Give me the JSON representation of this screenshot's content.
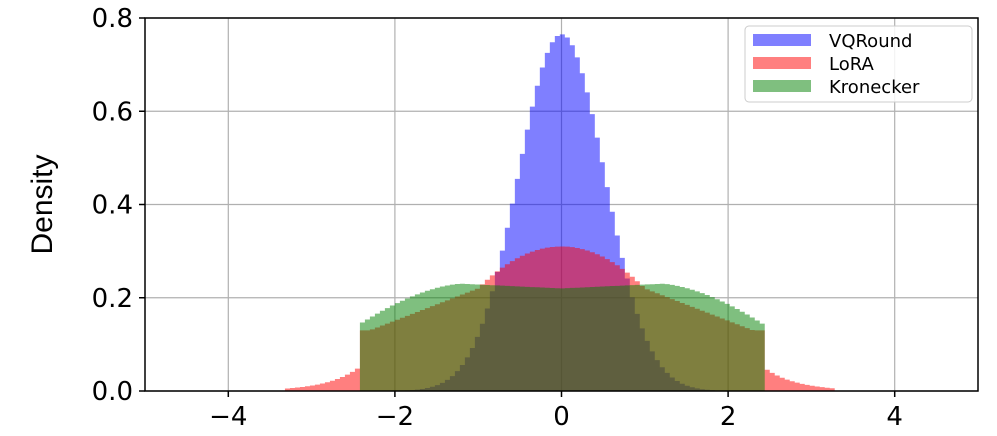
{
  "chart_data": {
    "type": "histogram",
    "xlabel": "",
    "ylabel": "Density",
    "xlim": [
      -5,
      5
    ],
    "ylim": [
      0,
      0.8
    ],
    "xticks": [
      "−4",
      "−2",
      "0",
      "2",
      "4"
    ],
    "xtick_values": [
      -4,
      -2,
      0,
      2,
      4
    ],
    "yticks": [
      "0.0",
      "0.2",
      "0.4",
      "0.6",
      "0.8"
    ],
    "ytick_values": [
      0,
      0.2,
      0.4,
      0.6,
      0.8
    ],
    "grid": true,
    "legend_position": "top-right",
    "series": [
      {
        "name": "VQRound",
        "color": "#0000ff",
        "opacity": 0.5,
        "distribution": "normal",
        "mean": 0,
        "std": 0.52,
        "peak": 0.765
      },
      {
        "name": "LoRA",
        "color": "#ff0000",
        "opacity": 0.5,
        "distribution": "truncated-sum",
        "center_peak": 0.31,
        "shoulder": 0.22,
        "tail_end": 3.3
      },
      {
        "name": "Kronecker",
        "color": "#008000",
        "opacity": 0.5,
        "distribution": "platykurtic",
        "center": 0.22,
        "shoulder_peak": 0.23,
        "edge": 2.45,
        "edge_value": 0.14
      }
    ]
  }
}
